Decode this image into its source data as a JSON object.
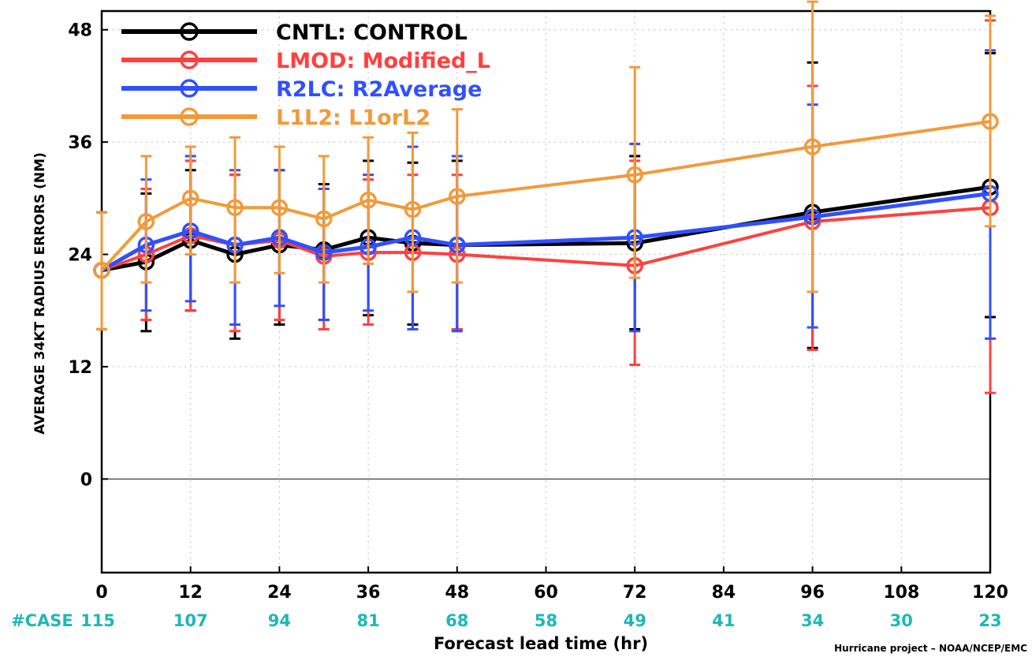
{
  "chart_data": {
    "type": "line",
    "title": "",
    "xlabel": "Forecast lead time (hr)",
    "ylabel": "AVERAGE 34KT RADIUS ERRORS (NM)",
    "xlim": [
      0,
      120
    ],
    "ylim": [
      -10,
      50
    ],
    "x_ticks": [
      0,
      12,
      24,
      36,
      48,
      60,
      72,
      84,
      96,
      108,
      120
    ],
    "y_ticks": [
      0,
      12,
      24,
      36,
      48
    ],
    "grid": true,
    "legend_position": "top-left",
    "case_label": "#CASE",
    "case_counts": [
      115,
      107,
      94,
      81,
      68,
      58,
      49,
      41,
      34,
      30,
      23
    ],
    "credit": "Hurricane project – NOAA/NCEP/EMC",
    "series": [
      {
        "name": "CNTL: CONTROL",
        "color": "#000000",
        "x": [
          0,
          6,
          12,
          18,
          24,
          30,
          36,
          42,
          48,
          72,
          96,
          120
        ],
        "values": [
          22.3,
          23.2,
          25.5,
          24.0,
          25.0,
          24.5,
          25.8,
          25.2,
          25.0,
          25.2,
          28.5,
          31.2
        ],
        "err_low": [
          16.0,
          15.8,
          18.0,
          15.0,
          16.5,
          17.0,
          17.5,
          16.5,
          16.0,
          16.0,
          14.0,
          17.3
        ],
        "err_high": [
          28.5,
          30.5,
          33.0,
          32.5,
          33.0,
          31.5,
          34.0,
          33.8,
          34.0,
          34.5,
          44.5,
          45.5
        ]
      },
      {
        "name": "LMOD: Modified_L",
        "color": "#ff4040",
        "x": [
          0,
          6,
          12,
          18,
          24,
          30,
          36,
          42,
          48,
          72,
          96,
          120
        ],
        "values": [
          22.3,
          24.0,
          26.0,
          25.0,
          25.5,
          23.8,
          24.2,
          24.2,
          24.0,
          22.8,
          27.5,
          29.0
        ],
        "err_low": [
          16.0,
          17.0,
          18.0,
          15.8,
          17.0,
          16.0,
          16.5,
          16.0,
          16.0,
          12.2,
          13.8,
          9.2
        ],
        "err_high": [
          28.5,
          31.0,
          34.0,
          32.5,
          33.0,
          31.0,
          32.0,
          32.5,
          32.5,
          34.0,
          42.0,
          49.0
        ]
      },
      {
        "name": "R2LC: R2Average",
        "color": "#3050ff",
        "x": [
          0,
          6,
          12,
          18,
          24,
          30,
          36,
          42,
          48,
          72,
          96,
          120
        ],
        "values": [
          22.3,
          25.0,
          26.5,
          25.0,
          25.8,
          24.2,
          24.8,
          25.8,
          25.0,
          25.8,
          28.0,
          30.5
        ],
        "err_low": [
          16.0,
          18.0,
          19.0,
          16.5,
          18.5,
          17.0,
          18.0,
          16.0,
          15.8,
          15.8,
          16.2,
          15.0
        ],
        "err_high": [
          28.5,
          32.0,
          34.5,
          33.0,
          33.0,
          31.0,
          32.5,
          35.5,
          34.5,
          35.8,
          40.0,
          45.8
        ]
      },
      {
        "name": "L1L2: L1orL2",
        "color": "#f29a3a",
        "x": [
          0,
          6,
          12,
          18,
          24,
          30,
          36,
          42,
          48,
          72,
          96,
          120
        ],
        "values": [
          22.3,
          27.5,
          30.0,
          29.0,
          29.0,
          27.8,
          29.8,
          28.8,
          30.2,
          32.5,
          35.5,
          38.2
        ],
        "err_low": [
          16.0,
          21.0,
          24.0,
          21.0,
          22.0,
          21.0,
          23.0,
          20.0,
          21.0,
          21.5,
          20.0,
          27.0
        ],
        "err_high": [
          28.5,
          34.5,
          35.5,
          36.5,
          35.5,
          34.5,
          36.5,
          37.0,
          39.5,
          44.0,
          51.0,
          49.5
        ]
      }
    ]
  }
}
